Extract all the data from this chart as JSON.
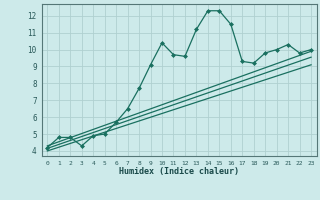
{
  "xlabel": "Humidex (Indice chaleur)",
  "bg_color": "#cdeaea",
  "grid_color": "#b0d0d0",
  "line_color": "#1a7060",
  "xlim": [
    -0.5,
    23.5
  ],
  "ylim": [
    3.7,
    12.7
  ],
  "xticks": [
    0,
    1,
    2,
    3,
    4,
    5,
    6,
    7,
    8,
    9,
    10,
    11,
    12,
    13,
    14,
    15,
    16,
    17,
    18,
    19,
    20,
    21,
    22,
    23
  ],
  "yticks": [
    4,
    5,
    6,
    7,
    8,
    9,
    10,
    11,
    12
  ],
  "main_x": [
    0,
    1,
    2,
    3,
    4,
    5,
    6,
    7,
    8,
    9,
    10,
    11,
    12,
    13,
    14,
    15,
    16,
    17,
    18,
    19,
    20,
    21,
    22,
    23
  ],
  "main_y": [
    4.2,
    4.8,
    4.8,
    4.3,
    4.9,
    5.0,
    5.7,
    6.5,
    7.7,
    9.1,
    10.4,
    9.7,
    9.6,
    11.2,
    12.3,
    12.3,
    11.5,
    9.3,
    9.2,
    9.8,
    10.0,
    10.3,
    9.8,
    10.0
  ],
  "trend1_x": [
    0,
    23
  ],
  "trend1_y": [
    4.3,
    9.9
  ],
  "trend2_x": [
    0,
    23
  ],
  "trend2_y": [
    4.15,
    9.55
  ],
  "trend3_x": [
    0,
    23
  ],
  "trend3_y": [
    4.0,
    9.1
  ]
}
